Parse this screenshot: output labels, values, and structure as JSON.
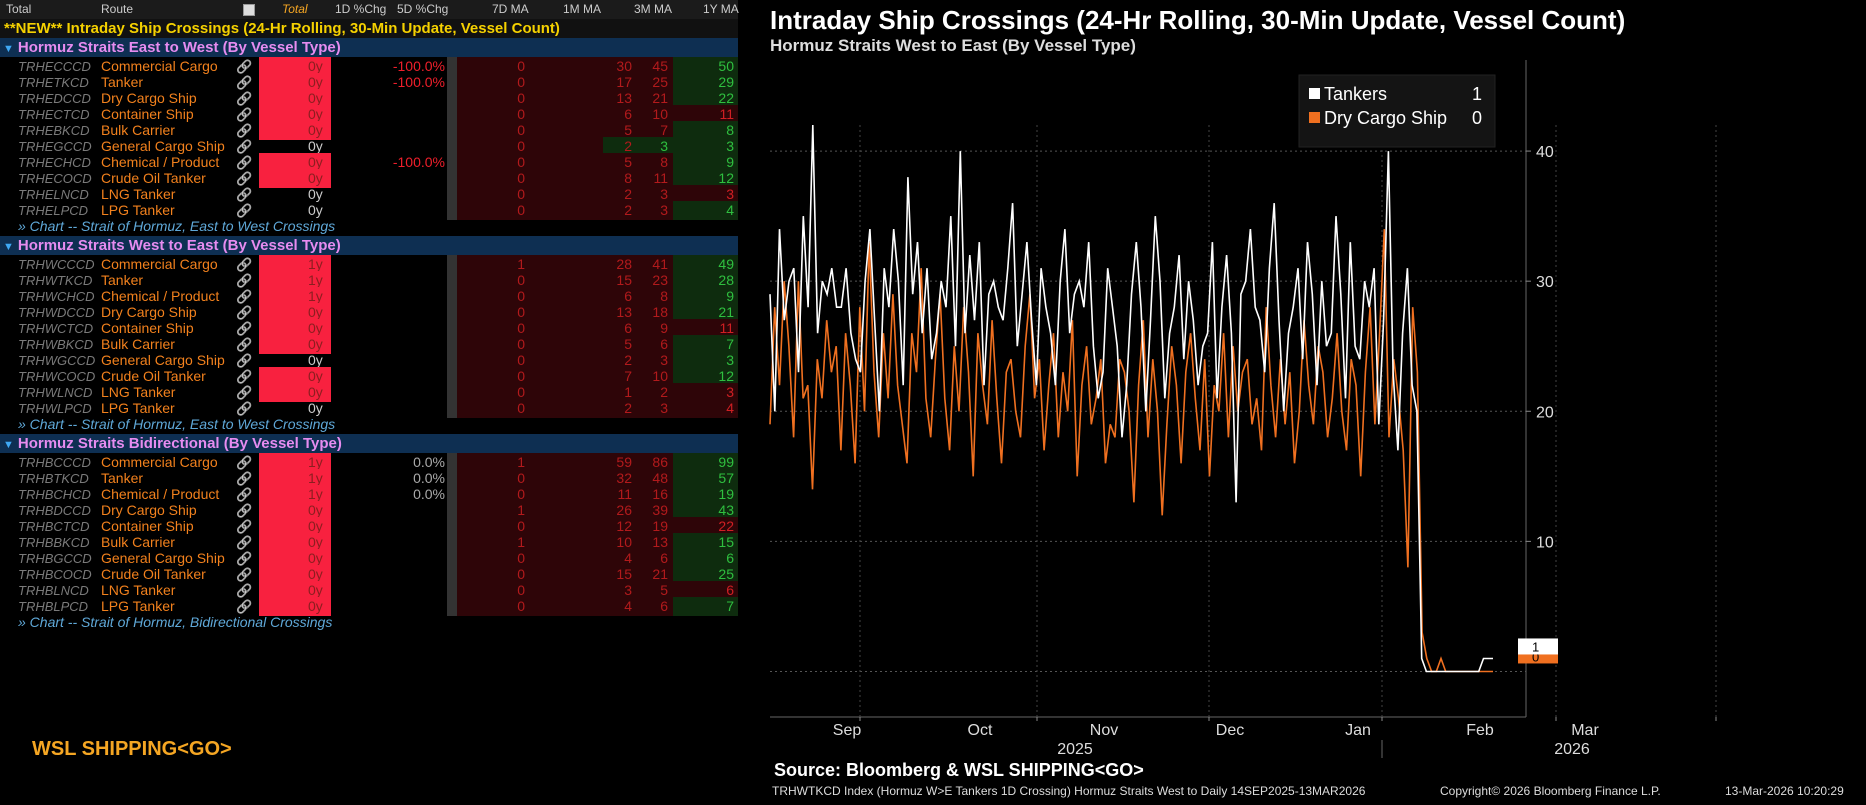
{
  "header": {
    "total_label": "Total",
    "route_label": "Route",
    "total_dropdown": "Total",
    "col_1d": "1D %Chg",
    "col_5d": "5D %Chg",
    "col_7d": "7D MA",
    "col_1m": "1M MA",
    "col_3m": "3M MA",
    "col_1y": "1Y MA"
  },
  "table_title": "**NEW** Intraday Ship Crossings (24-Hr Rolling, 30-Min Update, Vessel Count)",
  "groups": [
    {
      "title": "Hormuz Straits East to West (By Vessel Type)",
      "link": "» Chart -- Strait of Hormuz, East to West Crossings",
      "rows": [
        {
          "ticker": "TRHECCCD",
          "name": "Commercial Cargo",
          "y": "0y",
          "red": true,
          "chg": "-100.0%",
          "m7": "0",
          "m1": "30",
          "m3": "45",
          "y1": "50",
          "pos": true
        },
        {
          "ticker": "TRHETKCD",
          "name": "Tanker",
          "y": "0y",
          "red": true,
          "chg": "-100.0%",
          "m7": "0",
          "m1": "17",
          "m3": "25",
          "y1": "29",
          "pos": true
        },
        {
          "ticker": "TRHEDCCD",
          "name": "Dry Cargo Ship",
          "y": "0y",
          "red": true,
          "chg": "",
          "m7": "0",
          "m1": "13",
          "m3": "21",
          "y1": "22",
          "pos": true
        },
        {
          "ticker": "TRHECTCD",
          "name": "Container Ship",
          "y": "0y",
          "red": true,
          "chg": "",
          "m7": "0",
          "m1": "6",
          "m3": "10",
          "y1": "11",
          "pos": false
        },
        {
          "ticker": "TRHEBKCD",
          "name": "Bulk Carrier",
          "y": "0y",
          "red": true,
          "chg": "",
          "m7": "0",
          "m1": "5",
          "m3": "7",
          "y1": "8",
          "pos": true
        },
        {
          "ticker": "TRHEGCCD",
          "name": "General Cargo Ship",
          "y": "0y",
          "red": false,
          "chg": "",
          "m7": "0",
          "m1": "2",
          "m3": "3",
          "y1": "3",
          "pos": true,
          "m3pos": true
        },
        {
          "ticker": "TRHECHCD",
          "name": "Chemical / Product",
          "y": "0y",
          "red": true,
          "chg": "-100.0%",
          "m7": "0",
          "m1": "5",
          "m3": "8",
          "y1": "9",
          "pos": true
        },
        {
          "ticker": "TRHECOCD",
          "name": "Crude Oil Tanker",
          "y": "0y",
          "red": true,
          "chg": "",
          "m7": "0",
          "m1": "8",
          "m3": "11",
          "y1": "12",
          "pos": true
        },
        {
          "ticker": "TRHELNCD",
          "name": "LNG Tanker",
          "y": "0y",
          "red": false,
          "chg": "",
          "m7": "0",
          "m1": "2",
          "m3": "3",
          "y1": "3",
          "pos": false
        },
        {
          "ticker": "TRHELPCD",
          "name": "LPG Tanker",
          "y": "0y",
          "red": false,
          "chg": "",
          "m7": "0",
          "m1": "2",
          "m3": "3",
          "y1": "4",
          "pos": true
        }
      ]
    },
    {
      "title": "Hormuz Straits West to East (By Vessel Type)",
      "link": "» Chart -- Strait of Hormuz, East to West Crossings",
      "rows": [
        {
          "ticker": "TRHWCCCD",
          "name": "Commercial Cargo",
          "y": "1y",
          "red": true,
          "chg": "",
          "m7": "1",
          "m1": "28",
          "m3": "41",
          "y1": "49",
          "pos": true
        },
        {
          "ticker": "TRHWTKCD",
          "name": "Tanker",
          "y": "1y",
          "red": true,
          "chg": "",
          "m7": "0",
          "m1": "15",
          "m3": "23",
          "y1": "28",
          "pos": true
        },
        {
          "ticker": "TRHWCHCD",
          "name": "Chemical / Product",
          "y": "1y",
          "red": true,
          "chg": "",
          "m7": "0",
          "m1": "6",
          "m3": "8",
          "y1": "9",
          "pos": true
        },
        {
          "ticker": "TRHWDCCD",
          "name": "Dry Cargo Ship",
          "y": "0y",
          "red": true,
          "chg": "",
          "m7": "0",
          "m1": "13",
          "m3": "18",
          "y1": "21",
          "pos": true
        },
        {
          "ticker": "TRHWCTCD",
          "name": "Container Ship",
          "y": "0y",
          "red": true,
          "chg": "",
          "m7": "0",
          "m1": "6",
          "m3": "9",
          "y1": "11",
          "pos": false
        },
        {
          "ticker": "TRHWBKCD",
          "name": "Bulk Carrier",
          "y": "0y",
          "red": true,
          "chg": "",
          "m7": "0",
          "m1": "5",
          "m3": "6",
          "y1": "7",
          "pos": true
        },
        {
          "ticker": "TRHWGCCD",
          "name": "General Cargo Ship",
          "y": "0y",
          "red": false,
          "chg": "",
          "m7": "0",
          "m1": "2",
          "m3": "3",
          "y1": "3",
          "pos": true
        },
        {
          "ticker": "TRHWCOCD",
          "name": "Crude Oil Tanker",
          "y": "0y",
          "red": true,
          "chg": "",
          "m7": "0",
          "m1": "7",
          "m3": "10",
          "y1": "12",
          "pos": true
        },
        {
          "ticker": "TRHWLNCD",
          "name": "LNG Tanker",
          "y": "0y",
          "red": true,
          "chg": "",
          "m7": "0",
          "m1": "1",
          "m3": "2",
          "y1": "3",
          "pos": false
        },
        {
          "ticker": "TRHWLPCD",
          "name": "LPG Tanker",
          "y": "0y",
          "red": false,
          "chg": "",
          "m7": "0",
          "m1": "2",
          "m3": "3",
          "y1": "4",
          "pos": false
        }
      ]
    },
    {
      "title": "Hormuz Straits Bidirectional (By Vessel Type)",
      "link": "» Chart -- Strait of Hormuz, Bidirectional Crossings",
      "rows": [
        {
          "ticker": "TRHBCCCD",
          "name": "Commercial Cargo",
          "y": "1y",
          "red": true,
          "chg": "0.0%",
          "m7": "1",
          "m1": "59",
          "m3": "86",
          "y1": "99",
          "pos": true,
          "grey": true
        },
        {
          "ticker": "TRHBTKCD",
          "name": "Tanker",
          "y": "1y",
          "red": true,
          "chg": "0.0%",
          "m7": "0",
          "m1": "32",
          "m3": "48",
          "y1": "57",
          "pos": true,
          "grey": true
        },
        {
          "ticker": "TRHBCHCD",
          "name": "Chemical / Product",
          "y": "1y",
          "red": true,
          "chg": "0.0%",
          "m7": "0",
          "m1": "11",
          "m3": "16",
          "y1": "19",
          "pos": true,
          "grey": true
        },
        {
          "ticker": "TRHBDCCD",
          "name": "Dry Cargo Ship",
          "y": "0y",
          "red": true,
          "chg": "",
          "m7": "1",
          "m1": "26",
          "m3": "39",
          "y1": "43",
          "pos": true
        },
        {
          "ticker": "TRHBCTCD",
          "name": "Container Ship",
          "y": "0y",
          "red": true,
          "chg": "",
          "m7": "0",
          "m1": "12",
          "m3": "19",
          "y1": "22",
          "pos": false
        },
        {
          "ticker": "TRHBBKCD",
          "name": "Bulk Carrier",
          "y": "0y",
          "red": true,
          "chg": "",
          "m7": "1",
          "m1": "10",
          "m3": "13",
          "y1": "15",
          "pos": true
        },
        {
          "ticker": "TRHBGCCD",
          "name": "General Cargo Ship",
          "y": "0y",
          "red": true,
          "chg": "",
          "m7": "0",
          "m1": "4",
          "m3": "6",
          "y1": "6",
          "pos": true
        },
        {
          "ticker": "TRHBCOCD",
          "name": "Crude Oil Tanker",
          "y": "0y",
          "red": true,
          "chg": "",
          "m7": "0",
          "m1": "15",
          "m3": "21",
          "y1": "25",
          "pos": true
        },
        {
          "ticker": "TRHBLNCD",
          "name": "LNG Tanker",
          "y": "0y",
          "red": true,
          "chg": "",
          "m7": "0",
          "m1": "3",
          "m3": "5",
          "y1": "6",
          "pos": false
        },
        {
          "ticker": "TRHBLPCD",
          "name": "LPG Tanker",
          "y": "0y",
          "red": true,
          "chg": "",
          "m7": "0",
          "m1": "4",
          "m3": "6",
          "y1": "7",
          "pos": true
        }
      ]
    }
  ],
  "brand": "WSL SHIPPING<GO>",
  "chart": {
    "title": "Intraday Ship Crossings (24-Hr Rolling, 30-Min Update, Vessel Count)",
    "subtitle": "Hormuz Straits West to East (By Vessel Type)",
    "source": "Source: Bloomberg & WSL SHIPPING<GO>",
    "footer_left": "TRHWTKCD Index (Hormuz W>E Tankers 1D Crossing) Hormuz Straits West to Daily 14SEP2025-13MAR2026",
    "footer_copyright": "Copyright© 2026 Bloomberg Finance L.P.",
    "footer_timestamp": "13-Mar-2026 10:20:29"
  },
  "chart_data": {
    "type": "line",
    "title": "Intraday Ship Crossings (24-Hr Rolling, 30-Min Update, Vessel Count)",
    "subtitle": "Hormuz Straits West to East (By Vessel Type)",
    "x_start": "2025-09-14",
    "x_end": "2026-03-13",
    "x_ticks": [
      "Sep",
      "Oct",
      "Nov",
      "Dec",
      "Jan",
      "Feb",
      "Mar"
    ],
    "year_labels": [
      "2025",
      "2026"
    ],
    "y_ticks": [
      10,
      20,
      30,
      40
    ],
    "ylim": [
      -3.5,
      47
    ],
    "legend_position": "top-center",
    "series": [
      {
        "name": "Tankers",
        "color": "#ffffff",
        "last": "1",
        "values": [
          29,
          20,
          34,
          27,
          30,
          31,
          23,
          35,
          28,
          42,
          26,
          30,
          29,
          31,
          28,
          28,
          31,
          26,
          24,
          23,
          30,
          34,
          27,
          20,
          31,
          28,
          34,
          30,
          22,
          38,
          29,
          33,
          26,
          31,
          24,
          26,
          30,
          28,
          35,
          25,
          40,
          26,
          32,
          27,
          33,
          22,
          29,
          30,
          28,
          27,
          31,
          36,
          25,
          29,
          33,
          27,
          22,
          31,
          28,
          26,
          22,
          30,
          34,
          26,
          29,
          30,
          28,
          33,
          25,
          21,
          23,
          31,
          28,
          25,
          18,
          22,
          29,
          33,
          28,
          20,
          27,
          35,
          30,
          21,
          26,
          28,
          32,
          24,
          30,
          27,
          22,
          25,
          26,
          33,
          21,
          28,
          32,
          26,
          13,
          29,
          30,
          34,
          28,
          27,
          23,
          31,
          36,
          27,
          20,
          26,
          28,
          31,
          24,
          33,
          29,
          22,
          30,
          25,
          26,
          35,
          29,
          21,
          33,
          25,
          24,
          30,
          28,
          31,
          19,
          27,
          40,
          23,
          17,
          26,
          31,
          22,
          20,
          1,
          0,
          0,
          0,
          0,
          0,
          0,
          0,
          0,
          0,
          0,
          0,
          0,
          1,
          1,
          1
        ]
      },
      {
        "name": "Dry Cargo Ship",
        "color": "#f07020",
        "last": "0",
        "values": [
          19,
          28,
          22,
          30,
          25,
          18,
          30,
          21,
          22,
          14,
          24,
          21,
          27,
          23,
          25,
          17,
          26,
          22,
          16,
          28,
          20,
          33,
          23,
          18,
          26,
          21,
          29,
          22,
          19,
          16,
          26,
          23,
          31,
          21,
          18,
          24,
          29,
          21,
          17,
          25,
          20,
          28,
          23,
          15,
          26,
          22,
          19,
          27,
          21,
          16,
          23,
          24,
          20,
          18,
          25,
          29,
          21,
          24,
          17,
          22,
          26,
          18,
          23,
          20,
          27,
          15,
          22,
          25,
          19,
          21,
          24,
          16,
          19,
          18,
          24,
          23,
          20,
          13,
          22,
          27,
          18,
          24,
          20,
          12,
          19,
          25,
          22,
          16,
          23,
          26,
          21,
          17,
          24,
          15,
          22,
          20,
          26,
          18,
          25,
          20,
          23,
          24,
          19,
          21,
          17,
          28,
          22,
          18,
          24,
          19,
          23,
          16,
          20,
          27,
          22,
          19,
          25,
          23,
          18,
          21,
          26,
          20,
          17,
          24,
          22,
          15,
          23,
          28,
          19,
          26,
          34,
          18,
          24,
          21,
          17,
          8,
          28,
          23,
          3,
          1,
          0,
          0,
          1,
          0,
          0,
          0,
          0,
          0,
          0,
          0,
          0,
          0,
          0,
          0
        ]
      }
    ]
  }
}
